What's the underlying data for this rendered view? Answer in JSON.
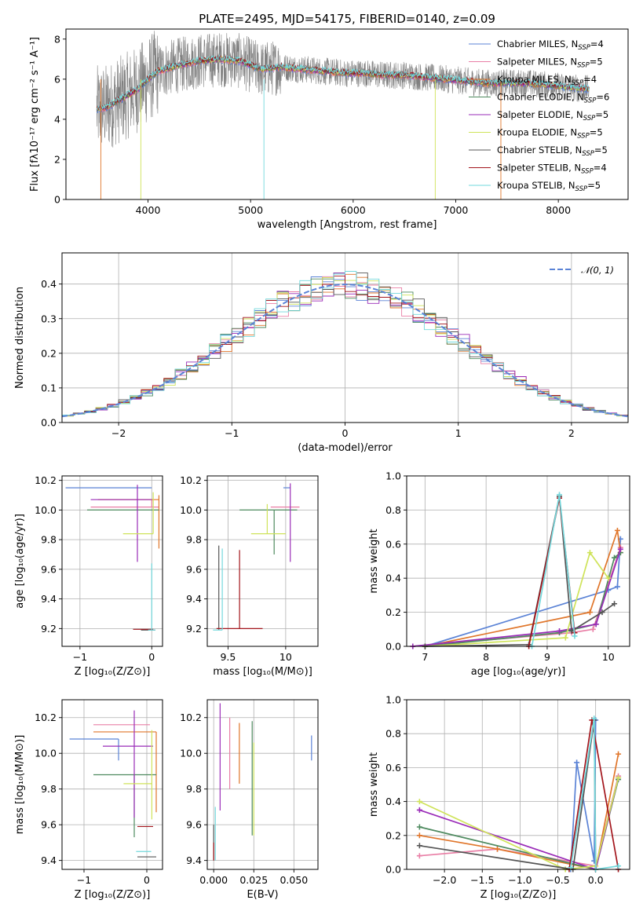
{
  "palette": {
    "Chabrier MILES": "#5b83d6",
    "Salpeter MILES": "#e97fa6",
    "Kroupa MILES": "#e0762b",
    "Chabrier ELODIE": "#4e8a5f",
    "Salpeter ELODIE": "#9a2cb8",
    "Kroupa ELODIE": "#cfe35a",
    "Chabrier STELIB": "#555555",
    "Salpeter STELIB": "#a3151c",
    "Kroupa STELIB": "#72d8dc"
  },
  "chart_data": [
    {
      "id": "spectrum",
      "type": "line",
      "title": "PLATE=2495, MJD=54175, FIBERID=0140, z=0.09",
      "xlabel": "wavelength [Angstrom, rest frame]",
      "ylabel": "Flux [fλ10⁻¹⁷ erg cm⁻² s⁻¹ A⁻¹]",
      "xlim": [
        3200,
        8680
      ],
      "ylim": [
        0,
        8.5
      ],
      "xticks": [
        4000,
        5000,
        6000,
        7000,
        8000
      ],
      "yticks": [
        0,
        2,
        4,
        6,
        8
      ],
      "observed": {
        "x": [
          3500,
          3600,
          3700,
          3800,
          3900,
          4000,
          4100,
          4300,
          4500,
          4700,
          4900,
          5100,
          5300,
          5500,
          5700,
          5900,
          6100,
          6300,
          6500,
          6700,
          6900,
          7100,
          7300,
          7500,
          7700,
          7900,
          8100,
          8300
        ],
        "y": [
          4.5,
          4.6,
          4.9,
          5.2,
          5.5,
          6.0,
          6.4,
          6.7,
          6.9,
          7.0,
          6.9,
          6.5,
          6.6,
          6.5,
          6.4,
          6.3,
          6.3,
          6.2,
          6.2,
          6.1,
          6.0,
          5.9,
          5.8,
          5.8,
          5.8,
          5.7,
          5.6,
          5.5
        ]
      },
      "legend": [
        "Chabrier MILES, N_SSP=4",
        "Salpeter MILES, N_SSP=5",
        "Kroupa MILES, N_SSP=4",
        "Chabrier ELODIE, N_SSP=6",
        "Salpeter ELODIE, N_SSP=5",
        "Kroupa ELODIE, N_SSP=5",
        "Chabrier STELIB, N_SSP=5",
        "Salpeter STELIB, N_SSP=4",
        "Kroupa STELIB, N_SSP=5"
      ],
      "legend_keys": [
        "Chabrier MILES",
        "Salpeter MILES",
        "Kroupa MILES",
        "Chabrier ELODIE",
        "Salpeter ELODIE",
        "Kroupa ELODIE",
        "Chabrier STELIB",
        "Salpeter STELIB",
        "Kroupa STELIB"
      ],
      "legend_position": "right"
    },
    {
      "id": "residuals",
      "type": "histogram",
      "xlabel": "(data-model)/error",
      "ylabel": "Normed distribution",
      "xlim": [
        -2.5,
        2.5
      ],
      "ylim": [
        0,
        0.49
      ],
      "xticks": [
        -2,
        -1,
        0,
        1,
        2
      ],
      "yticks": [
        0.0,
        0.1,
        0.2,
        0.3,
        0.4
      ],
      "bin_width": 0.1,
      "gaussian_label": "𝒩(0, 1)",
      "legend_position": "top-right",
      "grid": true
    },
    {
      "id": "age-vs-Z",
      "type": "errorbar",
      "xlabel": "Z [log₁₀(Z/Z⊙)]",
      "ylabel": "age  [log₁₀(age/yr)]",
      "xlim": [
        -1.25,
        0.15
      ],
      "ylim": [
        9.08,
        10.23
      ],
      "xticks": [
        -1,
        0
      ],
      "yticks": [
        9.2,
        9.4,
        9.6,
        9.8,
        10.0,
        10.2
      ],
      "points": [
        {
          "m": "Chabrier MILES",
          "x": -0.45,
          "xerr": [
            0.75,
            0.45
          ],
          "y": 10.15,
          "yerr": [
            0.0,
            0.0
          ]
        },
        {
          "m": "Salpeter MILES",
          "x": 0.0,
          "xerr": [
            0.85,
            0.1
          ],
          "y": 10.02,
          "yerr": [
            0.0,
            0.05
          ]
        },
        {
          "m": "Kroupa MILES",
          "x": 0.1,
          "xerr": [
            0.85,
            0.0
          ],
          "y": 10.07,
          "yerr": [
            0.33,
            0.03
          ]
        },
        {
          "m": "Chabrier ELODIE",
          "x": -0.9,
          "xerr": [
            0.0,
            1.0
          ],
          "y": 10.0,
          "yerr": [
            0.0,
            0.0
          ]
        },
        {
          "m": "Salpeter ELODIE",
          "x": -0.2,
          "xerr": [
            0.65,
            0.2
          ],
          "y": 10.07,
          "yerr": [
            0.42,
            0.1
          ]
        },
        {
          "m": "Kroupa ELODIE",
          "x": 0.02,
          "xerr": [
            0.42,
            0.0
          ],
          "y": 9.84,
          "yerr": [
            0.0,
            0.28
          ]
        },
        {
          "m": "Chabrier STELIB",
          "x": -0.05,
          "xerr": [
            0.1,
            0.1
          ],
          "y": 9.19,
          "yerr": [
            0.0,
            0.0
          ]
        },
        {
          "m": "Salpeter STELIB",
          "x": -0.08,
          "xerr": [
            0.18,
            0.1
          ],
          "y": 9.195,
          "yerr": [
            0.0,
            0.0
          ]
        },
        {
          "m": "Kroupa STELIB",
          "x": 0.0,
          "xerr": [
            0.05,
            0.05
          ],
          "y": 9.19,
          "yerr": [
            0.0,
            0.45
          ]
        }
      ]
    },
    {
      "id": "age-vs-mass",
      "type": "errorbar",
      "xlabel": "mass [log₁₀(M/M⊙)]",
      "xlim": [
        9.32,
        10.28
      ],
      "ylim": [
        9.08,
        10.23
      ],
      "xticks": [
        9.5,
        10.0
      ],
      "yticks": [
        9.2,
        9.4,
        9.6,
        9.8,
        10.0,
        10.2
      ],
      "points": [
        {
          "m": "Chabrier MILES",
          "x": 10.04,
          "xerr": [
            0.06,
            0.0
          ],
          "y": 10.15,
          "yerr": [
            0.0,
            0.0
          ]
        },
        {
          "m": "Salpeter MILES",
          "x": 10.12,
          "xerr": [
            0.25,
            0.0
          ],
          "y": 10.02,
          "yerr": [
            0.0,
            0.0
          ]
        },
        {
          "m": "Kroupa MILES",
          "x": 10.14,
          "xerr": [
            0.0,
            0.0
          ],
          "y": 10.07,
          "yerr": [
            0.0,
            0.0
          ]
        },
        {
          "m": "Chabrier ELODIE",
          "x": 9.9,
          "xerr": [
            0.3,
            0.2
          ],
          "y": 10.0,
          "yerr": [
            0.3,
            0.0
          ]
        },
        {
          "m": "Salpeter ELODIE",
          "x": 10.04,
          "xerr": [
            0.0,
            0.0
          ],
          "y": 10.08,
          "yerr": [
            0.43,
            0.1
          ]
        },
        {
          "m": "Kroupa ELODIE",
          "x": 9.84,
          "xerr": [
            0.14,
            0.16
          ],
          "y": 9.84,
          "yerr": [
            0.0,
            0.2
          ]
        },
        {
          "m": "Chabrier STELIB",
          "x": 9.42,
          "xerr": [
            0.0,
            0.0
          ],
          "y": 9.19,
          "yerr": [
            0.0,
            0.57
          ]
        },
        {
          "m": "Salpeter STELIB",
          "x": 9.6,
          "xerr": [
            0.2,
            0.2
          ],
          "y": 9.2,
          "yerr": [
            0.0,
            0.53
          ]
        },
        {
          "m": "Kroupa STELIB",
          "x": 9.45,
          "xerr": [
            0.08,
            0.0
          ],
          "y": 9.19,
          "yerr": [
            0.0,
            0.55
          ]
        }
      ]
    },
    {
      "id": "weight-vs-age",
      "type": "line",
      "xlabel": "age  [log₁₀(age/yr)]",
      "ylabel": "mass weight",
      "xlim": [
        6.7,
        10.35
      ],
      "ylim": [
        0,
        1
      ],
      "xticks": [
        7,
        8,
        9,
        10
      ],
      "yticks": [
        0.0,
        0.2,
        0.4,
        0.6,
        0.8,
        1.0
      ],
      "grid": true,
      "series": [
        {
          "m": "Chabrier MILES",
          "x": [
            7.0,
            10.0,
            10.15,
            10.2
          ],
          "y": [
            0.0,
            0.33,
            0.35,
            0.63
          ]
        },
        {
          "m": "Salpeter MILES",
          "x": [
            6.8,
            9.4,
            9.75,
            10.2
          ],
          "y": [
            0.0,
            0.08,
            0.1,
            0.58
          ]
        },
        {
          "m": "Kroupa MILES",
          "x": [
            7.0,
            9.7,
            10.15,
            10.2
          ],
          "y": [
            0.0,
            0.2,
            0.68,
            0.55
          ]
        },
        {
          "m": "Chabrier ELODIE",
          "x": [
            7.0,
            9.2,
            9.8,
            10.1,
            10.2
          ],
          "y": [
            0.0,
            0.08,
            0.13,
            0.52,
            0.55
          ]
        },
        {
          "m": "Salpeter ELODIE",
          "x": [
            6.8,
            9.2,
            9.8,
            10.2
          ],
          "y": [
            0.0,
            0.09,
            0.13,
            0.57
          ]
        },
        {
          "m": "Kroupa ELODIE",
          "x": [
            7.0,
            9.3,
            9.7,
            10.0
          ],
          "y": [
            0.0,
            0.05,
            0.55,
            0.4
          ]
        },
        {
          "m": "Chabrier STELIB",
          "x": [
            7.0,
            8.7,
            9.2,
            9.4,
            9.9,
            10.1
          ],
          "y": [
            0.0,
            0.01,
            0.88,
            0.09,
            0.2,
            0.25
          ]
        },
        {
          "m": "Salpeter STELIB",
          "x": [
            8.7,
            9.2,
            9.45
          ],
          "y": [
            0.0,
            0.87,
            0.08
          ]
        },
        {
          "m": "Kroupa STELIB",
          "x": [
            8.75,
            9.2,
            9.45
          ],
          "y": [
            0.0,
            0.89,
            0.06
          ]
        }
      ]
    },
    {
      "id": "mass-vs-Z",
      "type": "errorbar",
      "xlabel": "Z [log₁₀(Z/Z⊙)]",
      "ylabel": "mass [log₁₀(M/M⊙)]",
      "xlim": [
        -1.35,
        0.25
      ],
      "ylim": [
        9.35,
        10.3
      ],
      "xticks": [
        -1,
        0
      ],
      "yticks": [
        9.4,
        9.6,
        9.8,
        10.0,
        10.2
      ],
      "points": [
        {
          "m": "Chabrier MILES",
          "x": -0.45,
          "xerr": [
            0.78,
            0.0
          ],
          "y": 10.08,
          "yerr": [
            0.12,
            0.0
          ]
        },
        {
          "m": "Salpeter MILES",
          "x": -0.35,
          "xerr": [
            0.5,
            0.4
          ],
          "y": 10.16,
          "yerr": [
            0.0,
            0.0
          ]
        },
        {
          "m": "Kroupa MILES",
          "x": 0.15,
          "xerr": [
            1.0,
            0.0
          ],
          "y": 10.12,
          "yerr": [
            0.45,
            0.0
          ]
        },
        {
          "m": "Chabrier ELODIE",
          "x": -0.2,
          "xerr": [
            0.65,
            0.35
          ],
          "y": 9.88,
          "yerr": [
            0.35,
            0.0
          ]
        },
        {
          "m": "Salpeter ELODIE",
          "x": -0.2,
          "xerr": [
            0.5,
            0.3
          ],
          "y": 10.04,
          "yerr": [
            0.4,
            0.2
          ]
        },
        {
          "m": "Kroupa ELODIE",
          "x": 0.08,
          "xerr": [
            0.45,
            0.0
          ],
          "y": 9.83,
          "yerr": [
            0.2,
            0.3
          ]
        },
        {
          "m": "Chabrier STELIB",
          "x": 0.0,
          "xerr": [
            0.15,
            0.15
          ],
          "y": 9.42,
          "yerr": [
            0.0,
            0.0
          ]
        },
        {
          "m": "Salpeter STELIB",
          "x": 0.0,
          "xerr": [
            0.15,
            0.1
          ],
          "y": 9.59,
          "yerr": [
            0.0,
            0.0
          ]
        },
        {
          "m": "Kroupa STELIB",
          "x": -0.05,
          "xerr": [
            0.12,
            0.12
          ],
          "y": 9.45,
          "yerr": [
            0.0,
            0.0
          ]
        }
      ]
    },
    {
      "id": "mass-vs-EBV",
      "type": "errorbar",
      "xlabel": "E(B-V)",
      "xlim": [
        -0.004,
        0.065
      ],
      "ylim": [
        9.35,
        10.3
      ],
      "xticks": [
        0.0,
        0.025,
        0.05
      ],
      "xtick_labels": [
        "0.000",
        "0.025",
        "0.050"
      ],
      "yticks": [
        9.4,
        9.6,
        9.8,
        10.0,
        10.2
      ],
      "points": [
        {
          "m": "Chabrier MILES",
          "x": 0.061,
          "xerr": [
            0.0,
            0.0
          ],
          "y": 10.03,
          "yerr": [
            0.07,
            0.07
          ]
        },
        {
          "m": "Salpeter MILES",
          "x": 0.01,
          "xerr": [
            0.0,
            0.0
          ],
          "y": 10.0,
          "yerr": [
            0.2,
            0.2
          ]
        },
        {
          "m": "Kroupa MILES",
          "x": 0.016,
          "xerr": [
            0.0,
            0.0
          ],
          "y": 10.0,
          "yerr": [
            0.17,
            0.17
          ]
        },
        {
          "m": "Chabrier ELODIE",
          "x": 0.024,
          "xerr": [
            0.0,
            0.0
          ],
          "y": 9.86,
          "yerr": [
            0.32,
            0.32
          ]
        },
        {
          "m": "Salpeter ELODIE",
          "x": 0.004,
          "xerr": [
            0.0,
            0.0
          ],
          "y": 9.98,
          "yerr": [
            0.3,
            0.3
          ]
        },
        {
          "m": "Kroupa ELODIE",
          "x": 0.025,
          "xerr": [
            0.0,
            0.0
          ],
          "y": 9.8,
          "yerr": [
            0.26,
            0.26
          ]
        },
        {
          "m": "Chabrier STELIB",
          "x": 0.0,
          "xerr": [
            0.0,
            0.0
          ],
          "y": 9.5,
          "yerr": [
            0.1,
            0.1
          ]
        },
        {
          "m": "Salpeter STELIB",
          "x": 0.0,
          "xerr": [
            0.0,
            0.0
          ],
          "y": 9.45,
          "yerr": [
            0.05,
            0.05
          ]
        },
        {
          "m": "Kroupa STELIB",
          "x": 0.001,
          "xerr": [
            0.0,
            0.0
          ],
          "y": 9.55,
          "yerr": [
            0.15,
            0.15
          ]
        }
      ]
    },
    {
      "id": "weight-vs-Z",
      "type": "line",
      "xlabel": "Z [log₁₀(Z/Z⊙)]",
      "ylabel": "mass weight",
      "xlim": [
        -2.5,
        0.45
      ],
      "ylim": [
        0,
        1
      ],
      "xticks": [
        -2.0,
        -1.5,
        -1.0,
        -0.5,
        0.0
      ],
      "xtick_labels": [
        "−2.0",
        "−1.5",
        "−1.0",
        "−0.5",
        "0.0"
      ],
      "yticks": [
        0.0,
        0.2,
        0.4,
        0.6,
        0.8,
        1.0
      ],
      "grid": true,
      "series": [
        {
          "m": "Chabrier MILES",
          "x": [
            -0.33,
            -0.25,
            -0.02,
            0.0
          ],
          "y": [
            0.0,
            0.63,
            0.05,
            0.88
          ]
        },
        {
          "m": "Salpeter MILES",
          "x": [
            -2.33,
            -1.3,
            0.0,
            0.3
          ],
          "y": [
            0.08,
            0.12,
            0.02,
            0.55
          ]
        },
        {
          "m": "Kroupa MILES",
          "x": [
            -2.33,
            -1.3,
            0.0,
            0.3
          ],
          "y": [
            0.2,
            0.12,
            0.0,
            0.68
          ]
        },
        {
          "m": "Chabrier ELODIE",
          "x": [
            -2.33,
            0.0,
            0.3
          ],
          "y": [
            0.25,
            0.0,
            0.53
          ]
        },
        {
          "m": "Salpeter ELODIE",
          "x": [
            -2.33,
            0.0,
            0.3
          ],
          "y": [
            0.35,
            0.0,
            0.54
          ]
        },
        {
          "m": "Kroupa ELODIE",
          "x": [
            -2.33,
            -0.4,
            0.0,
            0.3
          ],
          "y": [
            0.4,
            0.0,
            0.02,
            0.54
          ]
        },
        {
          "m": "Chabrier STELIB",
          "x": [
            -2.33,
            -0.3,
            -0.02,
            0.0
          ],
          "y": [
            0.14,
            0.0,
            0.88,
            0.0
          ]
        },
        {
          "m": "Salpeter STELIB",
          "x": [
            -0.35,
            -0.05,
            0.3
          ],
          "y": [
            0.0,
            0.88,
            0.0
          ]
        },
        {
          "m": "Kroupa STELIB",
          "x": [
            -0.33,
            -0.02,
            0.0,
            0.3
          ],
          "y": [
            0.01,
            0.89,
            0.0,
            0.02
          ]
        }
      ]
    }
  ]
}
